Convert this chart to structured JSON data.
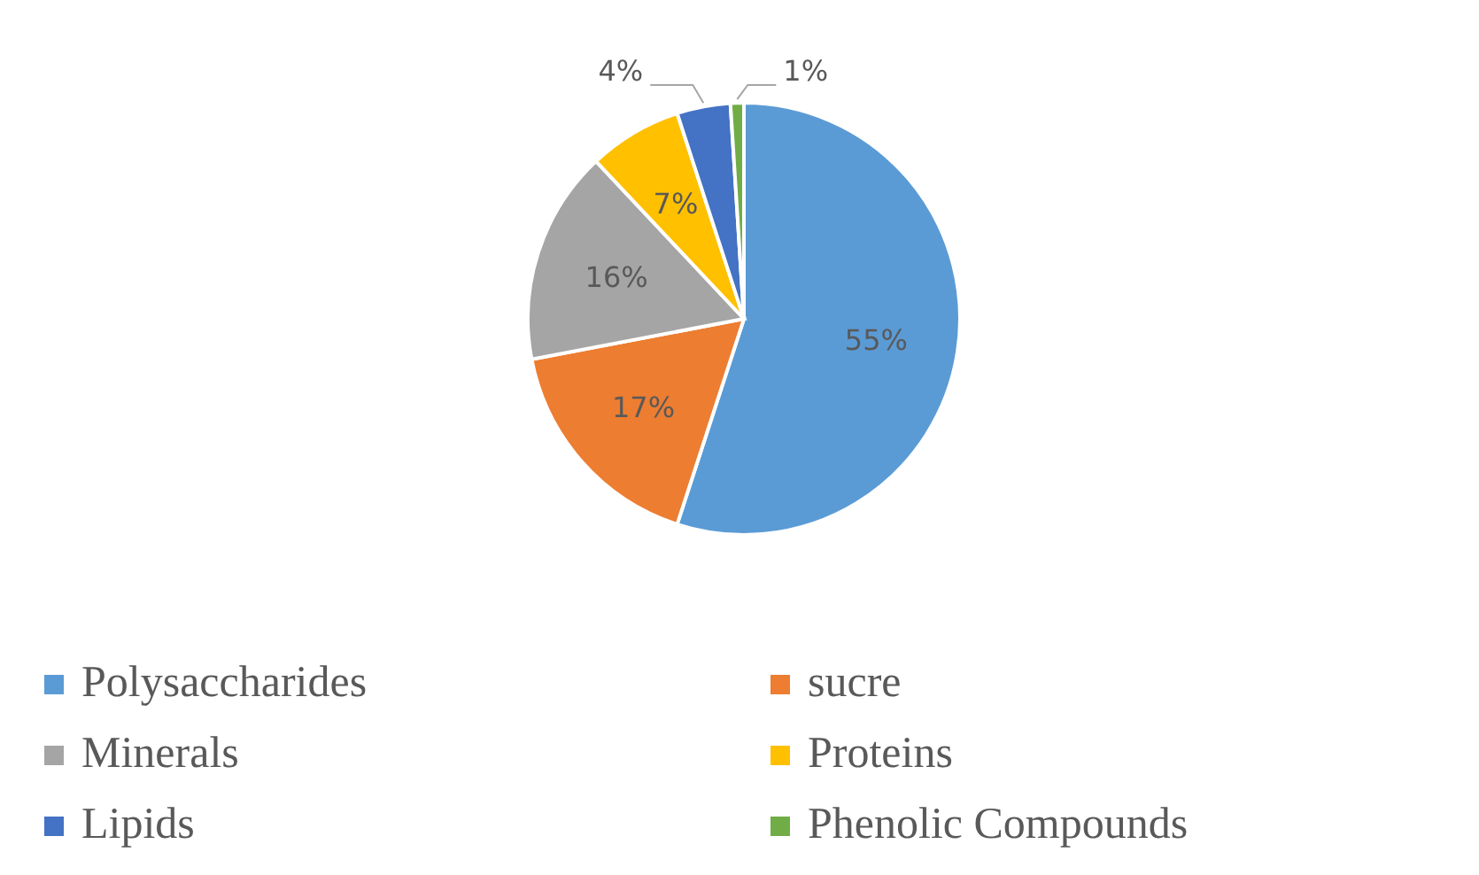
{
  "chart_data": {
    "type": "pie",
    "categories": [
      "Polysaccharides",
      "sucre",
      "Minerals",
      "Proteins",
      "Lipids",
      "Phenolic Compounds"
    ],
    "values": [
      55,
      17,
      16,
      7,
      4,
      1
    ],
    "colors": [
      "#5b9bd5",
      "#ed7d31",
      "#a5a5a5",
      "#ffc000",
      "#4472c4",
      "#70ad47"
    ],
    "value_labels": [
      "55%",
      "17%",
      "16%",
      "7%",
      "4%",
      "1%"
    ],
    "legend": "bottom"
  }
}
